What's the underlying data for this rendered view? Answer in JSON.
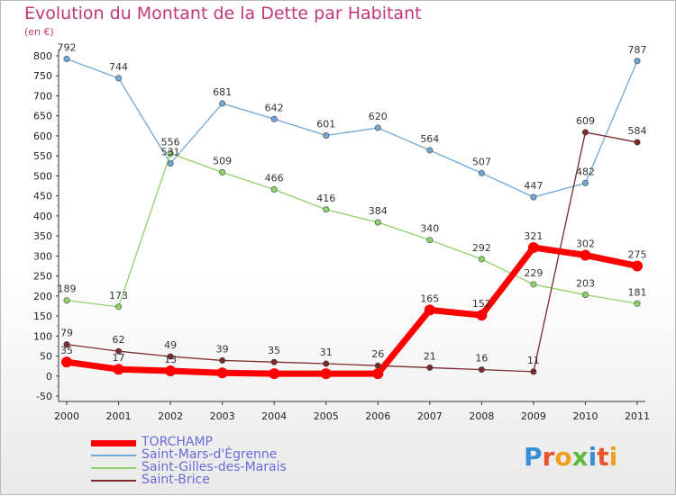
{
  "title": "Evolution du Montant de la Dette par Habitant",
  "unit_label": "(en €)",
  "brand": {
    "letters": [
      "P",
      "r",
      "o",
      "x",
      "i",
      "t",
      "i"
    ],
    "colors": [
      "#3a8fd8",
      "#e8542c",
      "#f0a020",
      "#5fb840",
      "#3a8fd8",
      "#e8542c",
      "#f0a020"
    ]
  },
  "chart_data": {
    "type": "line",
    "title": "Evolution du Montant de la Dette par Habitant",
    "ylabel": "(en €)",
    "xlabel": "",
    "x": [
      "2000",
      "2001",
      "2002",
      "2003",
      "2004",
      "2005",
      "2006",
      "2007",
      "2008",
      "2009",
      "2010",
      "2011"
    ],
    "ylim": [
      -50,
      800
    ],
    "yticks": [
      "-50",
      "0",
      "50",
      "100",
      "150",
      "200",
      "250",
      "300",
      "350",
      "400",
      "450",
      "500",
      "550",
      "600",
      "650",
      "700",
      "750",
      "800"
    ],
    "grid": false,
    "legend_position": "bottom-left",
    "series": [
      {
        "name": "TORCHAMP",
        "color": "#ff0000",
        "values": [
          35,
          17,
          13,
          8,
          6,
          6,
          6,
          165,
          152,
          321,
          302,
          275
        ],
        "labels": [
          "35",
          "17",
          "13",
          "",
          "",
          "",
          "",
          "165",
          "152",
          "321",
          "302",
          "275"
        ]
      },
      {
        "name": "Saint-Mars-d'Égrenne",
        "color": "#6fa7d6",
        "values": [
          792,
          744,
          531,
          681,
          642,
          601,
          620,
          564,
          507,
          447,
          482,
          787
        ],
        "labels": [
          "792",
          "744",
          "531",
          "681",
          "642",
          "601",
          "620",
          "564",
          "507",
          "447",
          "482",
          "787"
        ]
      },
      {
        "name": "Saint-Gilles-des-Marais",
        "color": "#8fd26a",
        "values": [
          189,
          173,
          556,
          509,
          466,
          416,
          384,
          340,
          292,
          229,
          203,
          181
        ],
        "labels": [
          "189",
          "173",
          "556",
          "509",
          "466",
          "416",
          "384",
          "340",
          "292",
          "229",
          "203",
          "181"
        ]
      },
      {
        "name": "Saint-Brice",
        "color": "#7a2a2a",
        "values": [
          79,
          62,
          49,
          39,
          35,
          31,
          26,
          21,
          16,
          11,
          609,
          584
        ],
        "labels": [
          "79",
          "62",
          "49",
          "39",
          "35",
          "31",
          "26",
          "21",
          "16",
          "11",
          "609",
          "584"
        ]
      }
    ]
  }
}
